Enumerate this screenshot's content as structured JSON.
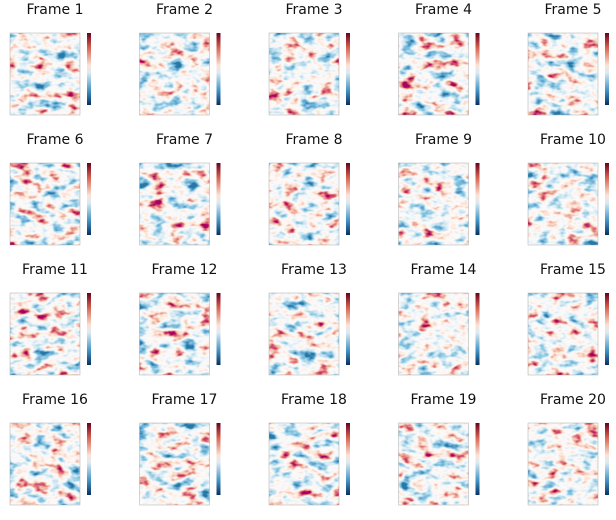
{
  "frames": [
    {
      "title": "Frame 1"
    },
    {
      "title": "Frame 2"
    },
    {
      "title": "Frame 3"
    },
    {
      "title": "Frame 4"
    },
    {
      "title": "Frame 5"
    },
    {
      "title": "Frame 6"
    },
    {
      "title": "Frame 7"
    },
    {
      "title": "Frame 8"
    },
    {
      "title": "Frame 9"
    },
    {
      "title": "Frame 10"
    },
    {
      "title": "Frame 11"
    },
    {
      "title": "Frame 12"
    },
    {
      "title": "Frame 13"
    },
    {
      "title": "Frame 14"
    },
    {
      "title": "Frame 15"
    },
    {
      "title": "Frame 16"
    },
    {
      "title": "Frame 17"
    },
    {
      "title": "Frame 18"
    },
    {
      "title": "Frame 19"
    },
    {
      "title": "Frame 20"
    }
  ]
}
